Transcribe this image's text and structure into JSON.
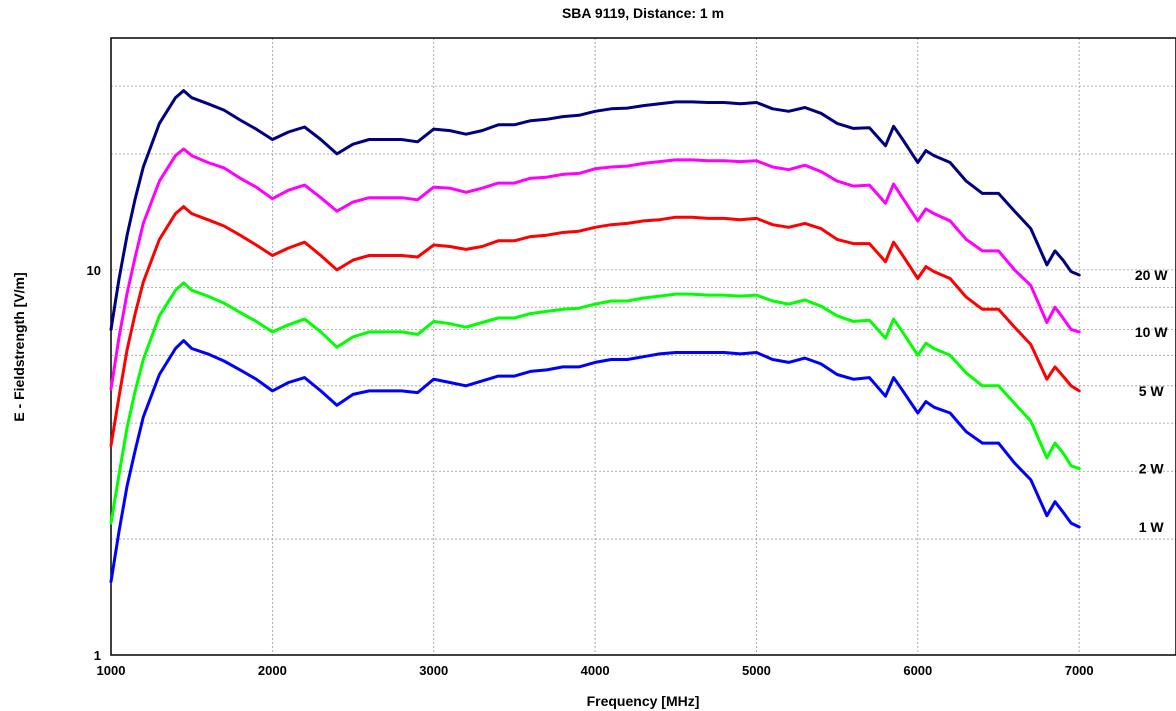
{
  "chart_data": {
    "type": "line",
    "title": "SBA 9119, Distance: 1 m",
    "xlabel": "Frequency [MHz]",
    "ylabel": "E - Fieldstrength [V/m]",
    "xlim": [
      1000,
      7600
    ],
    "ylim": [
      1,
      40
    ],
    "yscale": "log",
    "x_ticks": [
      1000,
      2000,
      3000,
      4000,
      5000,
      6000,
      7000
    ],
    "x_tick_labels": [
      "1000",
      "2000",
      "3000",
      "4000",
      "5000",
      "6000",
      "7000"
    ],
    "y_tick_labels": [
      {
        "value": 1,
        "label": "1"
      },
      {
        "value": 10,
        "label": "10"
      }
    ],
    "grid": true,
    "x": [
      1000,
      1050,
      1100,
      1150,
      1200,
      1300,
      1400,
      1450,
      1500,
      1600,
      1700,
      1800,
      1900,
      2000,
      2100,
      2200,
      2300,
      2400,
      2500,
      2600,
      2700,
      2800,
      2900,
      3000,
      3100,
      3200,
      3300,
      3400,
      3500,
      3600,
      3700,
      3800,
      3900,
      4000,
      4100,
      4200,
      4300,
      4400,
      4500,
      4600,
      4700,
      4800,
      4900,
      5000,
      5100,
      5200,
      5300,
      5400,
      5500,
      5600,
      5700,
      5800,
      5850,
      5900,
      6000,
      6050,
      6100,
      6200,
      6300,
      6400,
      6500,
      6600,
      6700,
      6800,
      6850,
      6900,
      6950,
      7000
    ],
    "series": [
      {
        "name": "20 W",
        "color": "#000080",
        "values": [
          7.0,
          9.5,
          12.3,
          15.3,
          18.5,
          24.0,
          28.0,
          29.2,
          28.0,
          27.0,
          26.0,
          24.5,
          23.2,
          21.8,
          22.8,
          23.5,
          21.8,
          20.0,
          21.2,
          21.8,
          21.8,
          21.8,
          21.5,
          23.2,
          23.0,
          22.5,
          23.0,
          23.8,
          23.8,
          24.4,
          24.6,
          25.0,
          25.2,
          25.8,
          26.2,
          26.3,
          26.7,
          27.0,
          27.3,
          27.3,
          27.2,
          27.2,
          27.0,
          27.2,
          26.2,
          25.8,
          26.4,
          25.5,
          24.0,
          23.3,
          23.4,
          21.0,
          23.6,
          22.0,
          19.0,
          20.4,
          19.8,
          19.0,
          17.0,
          15.8,
          15.8,
          14.2,
          12.8,
          10.3,
          11.2,
          10.6,
          9.9,
          9.7
        ]
      },
      {
        "name": "10 W",
        "color": "#ff00ff",
        "values": [
          4.9,
          6.7,
          8.7,
          10.8,
          13.2,
          17.0,
          19.8,
          20.6,
          19.8,
          19.0,
          18.4,
          17.3,
          16.4,
          15.3,
          16.1,
          16.6,
          15.4,
          14.2,
          15.0,
          15.4,
          15.4,
          15.4,
          15.2,
          16.4,
          16.3,
          15.9,
          16.3,
          16.8,
          16.8,
          17.3,
          17.4,
          17.7,
          17.8,
          18.3,
          18.5,
          18.6,
          18.9,
          19.1,
          19.3,
          19.3,
          19.2,
          19.2,
          19.1,
          19.2,
          18.5,
          18.2,
          18.7,
          18.0,
          17.0,
          16.5,
          16.6,
          14.9,
          16.7,
          15.5,
          13.4,
          14.4,
          14.0,
          13.4,
          12.0,
          11.2,
          11.2,
          10.0,
          9.1,
          7.3,
          8.0,
          7.5,
          7.0,
          6.9
        ]
      },
      {
        "name": "5 W",
        "color": "#ff0000",
        "values": [
          3.5,
          4.7,
          6.2,
          7.7,
          9.3,
          12.0,
          14.0,
          14.6,
          14.0,
          13.5,
          13.0,
          12.3,
          11.6,
          10.9,
          11.4,
          11.8,
          10.9,
          10.0,
          10.6,
          10.9,
          10.9,
          10.9,
          10.8,
          11.6,
          11.5,
          11.3,
          11.5,
          11.9,
          11.9,
          12.2,
          12.3,
          12.5,
          12.6,
          12.9,
          13.1,
          13.2,
          13.4,
          13.5,
          13.7,
          13.7,
          13.6,
          13.6,
          13.5,
          13.6,
          13.1,
          12.9,
          13.2,
          12.8,
          12.0,
          11.7,
          11.7,
          10.5,
          11.8,
          11.0,
          9.5,
          10.2,
          9.9,
          9.5,
          8.5,
          7.9,
          7.9,
          7.1,
          6.4,
          5.2,
          5.6,
          5.3,
          5.0,
          4.85
        ]
      },
      {
        "name": "2 W",
        "color": "#00ff00",
        "values": [
          2.2,
          2.95,
          3.9,
          4.85,
          5.85,
          7.6,
          8.85,
          9.25,
          8.85,
          8.55,
          8.2,
          7.75,
          7.35,
          6.9,
          7.2,
          7.45,
          6.9,
          6.3,
          6.7,
          6.9,
          6.9,
          6.9,
          6.8,
          7.35,
          7.25,
          7.1,
          7.3,
          7.5,
          7.5,
          7.7,
          7.8,
          7.9,
          7.95,
          8.15,
          8.3,
          8.3,
          8.45,
          8.55,
          8.65,
          8.65,
          8.6,
          8.6,
          8.55,
          8.6,
          8.3,
          8.15,
          8.35,
          8.05,
          7.6,
          7.35,
          7.4,
          6.65,
          7.45,
          6.95,
          6.0,
          6.45,
          6.25,
          6.0,
          5.4,
          5.0,
          5.0,
          4.5,
          4.05,
          3.25,
          3.55,
          3.35,
          3.1,
          3.05
        ]
      },
      {
        "name": "1 W",
        "color": "#0000ff",
        "values": [
          1.55,
          2.1,
          2.75,
          3.4,
          4.15,
          5.35,
          6.25,
          6.55,
          6.25,
          6.05,
          5.8,
          5.5,
          5.2,
          4.85,
          5.1,
          5.25,
          4.85,
          4.45,
          4.75,
          4.85,
          4.85,
          4.85,
          4.8,
          5.2,
          5.1,
          5.0,
          5.15,
          5.3,
          5.3,
          5.45,
          5.5,
          5.6,
          5.6,
          5.75,
          5.85,
          5.85,
          5.95,
          6.05,
          6.1,
          6.1,
          6.1,
          6.1,
          6.05,
          6.1,
          5.85,
          5.75,
          5.9,
          5.7,
          5.35,
          5.2,
          5.25,
          4.7,
          5.25,
          4.9,
          4.25,
          4.55,
          4.4,
          4.25,
          3.8,
          3.55,
          3.55,
          3.15,
          2.85,
          2.3,
          2.5,
          2.35,
          2.2,
          2.15
        ]
      }
    ]
  }
}
